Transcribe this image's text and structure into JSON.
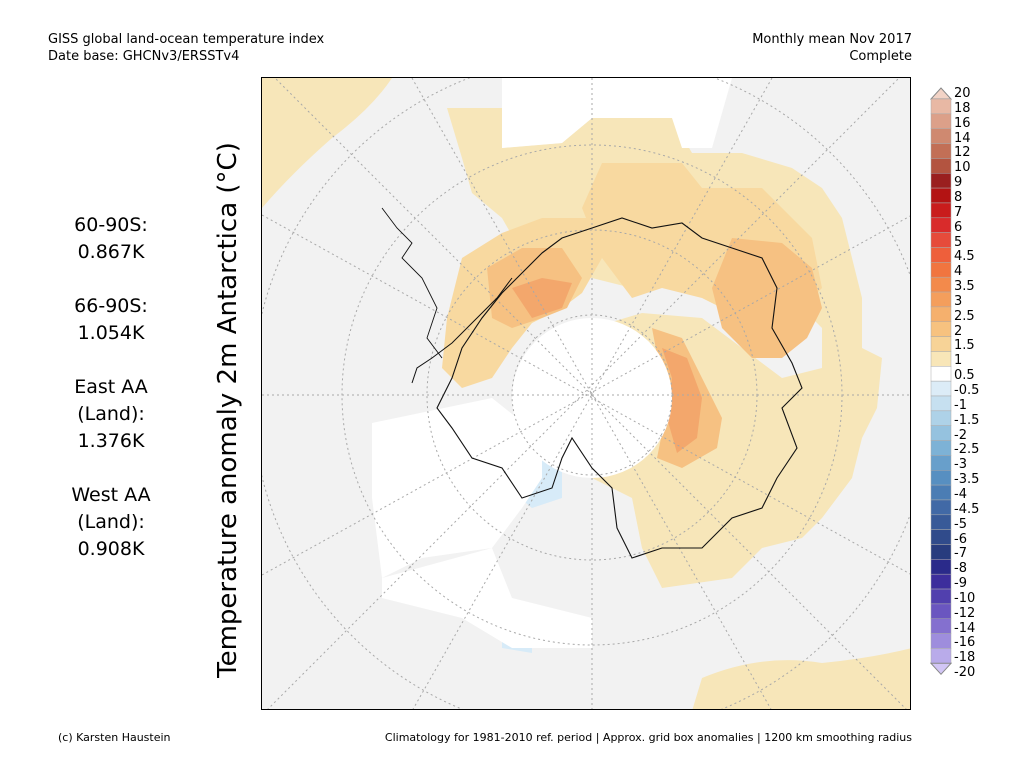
{
  "header": {
    "title": "GISS global land-ocean temperature index",
    "database": "Date base: GHCNv3/ERSSTv4",
    "period": "Monthly mean Nov 2017",
    "status": "Complete"
  },
  "stats": [
    {
      "label1": "60-90S:",
      "label2": "",
      "value": "0.867K"
    },
    {
      "label1": "66-90S:",
      "label2": "",
      "value": "1.054K"
    },
    {
      "label1": "East AA",
      "label2": "(Land):",
      "value": "1.376K"
    },
    {
      "label1": "West AA",
      "label2": "(Land):",
      "value": "0.908K"
    }
  ],
  "axis_label": "Temperature anomaly 2m Antarctica (°C)",
  "colorbar": {
    "labels": [
      "20",
      "18",
      "16",
      "14",
      "12",
      "10",
      "9",
      "8",
      "7",
      "6",
      "5",
      "4.5",
      "4",
      "3.5",
      "3",
      "2.5",
      "2",
      "1.5",
      "1",
      "0.5",
      "-0.5",
      "-1",
      "-1.5",
      "-2",
      "-2.5",
      "-3",
      "-3.5",
      "-4",
      "-4.5",
      "-5",
      "-6",
      "-7",
      "-8",
      "-9",
      "-10",
      "-12",
      "-14",
      "-16",
      "-18",
      "-20"
    ],
    "colors": [
      "#f2d3c6",
      "#e8b8a4",
      "#dca089",
      "#cf8970",
      "#c26f56",
      "#b35440",
      "#9a1f1f",
      "#b31313",
      "#c91c1c",
      "#d92b2b",
      "#e64b3b",
      "#ee5f3b",
      "#f1753f",
      "#f38a4b",
      "#f49e5c",
      "#f5b06d",
      "#f7c27f",
      "#f7d397",
      "#f8e6b8",
      "#ffffff",
      "#dcecf7",
      "#c6e0f0",
      "#aed2e8",
      "#95c2df",
      "#7db2d6",
      "#689fcb",
      "#578fc1",
      "#4b7db4",
      "#4169a6",
      "#385a98",
      "#304b8b",
      "#283c7e",
      "#2a2a8a",
      "#3d2e9c",
      "#5140ae",
      "#6a56c0",
      "#8470cf",
      "#9e8ddd",
      "#b9abea",
      "#d2c6f5"
    ]
  },
  "footer": {
    "credit": "(c) Karsten Haustein",
    "note": "Climatology for 1981-2010 ref. period | Approx. grid box anomalies | 1200 km smoothing radius"
  }
}
